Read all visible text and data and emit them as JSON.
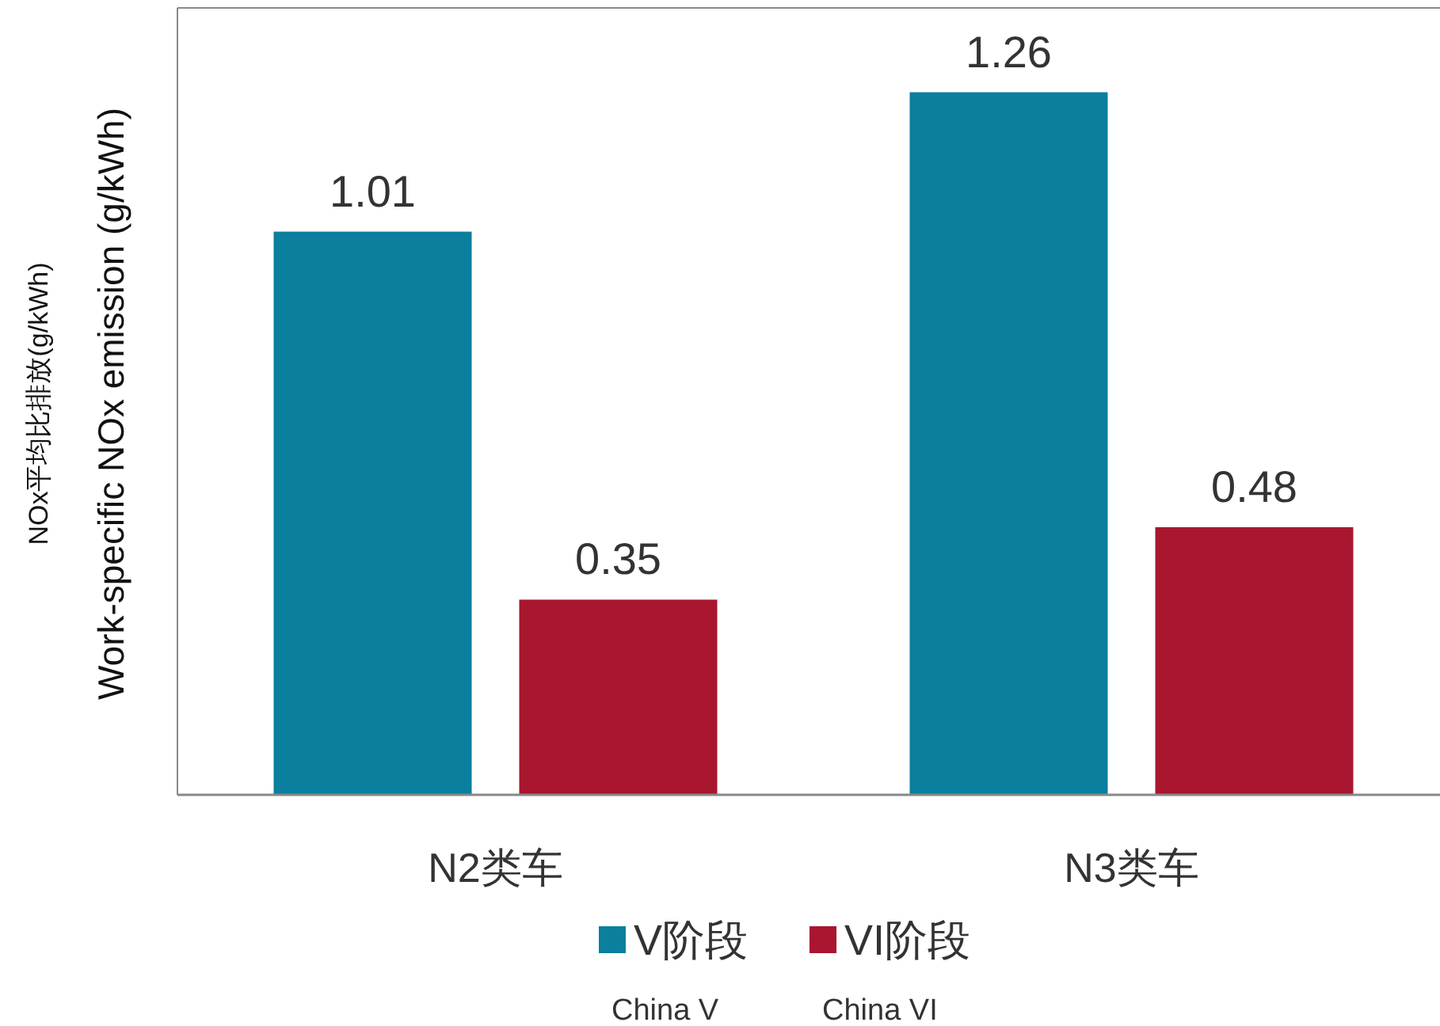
{
  "chart_data": {
    "type": "bar",
    "ylabel": "NOx平均比排放(g/kWh)\nWork-specific NOx emission (g/kWh)",
    "categories": [
      "N2类车",
      "N3类车"
    ],
    "series": [
      {
        "name": "V阶段\nChina V",
        "color": "#0a7f9e",
        "values": [
          1.01,
          1.26
        ]
      },
      {
        "name": "VI阶段\nChina VI",
        "color": "#a8162f",
        "values": [
          0.35,
          0.48
        ]
      }
    ],
    "data_labels": true,
    "legend": "bottom"
  }
}
